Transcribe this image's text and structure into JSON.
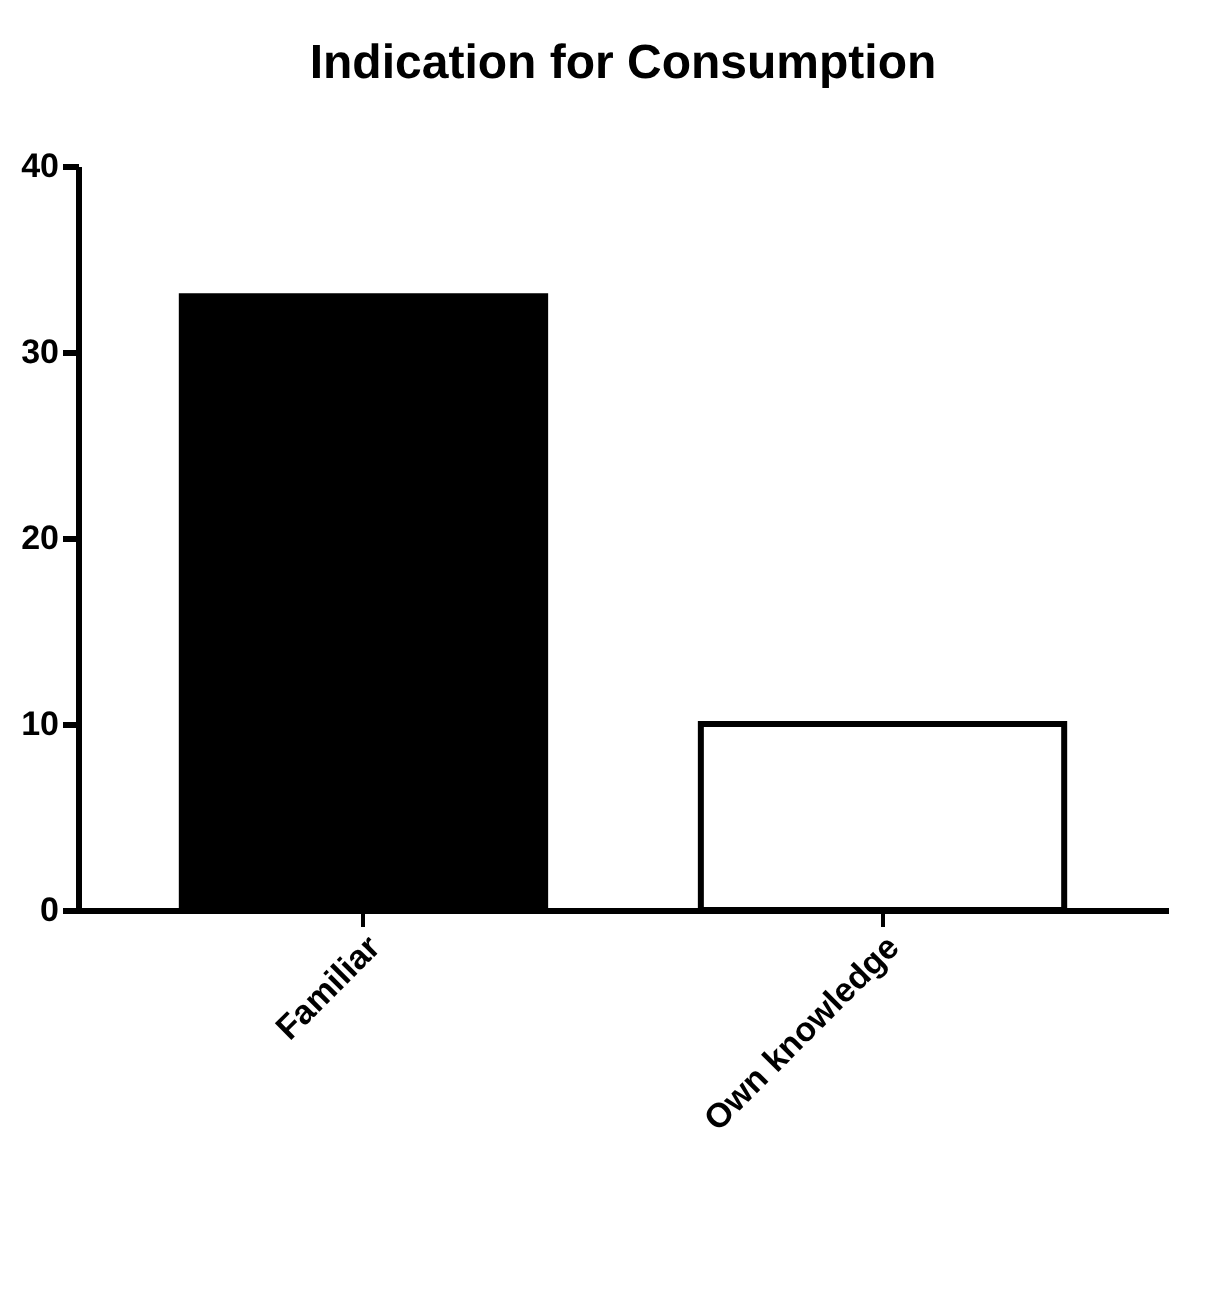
{
  "chart_data": {
    "type": "bar",
    "title": "Indication for Consumption",
    "categories": [
      "Familiar",
      "Own knowledge"
    ],
    "values": [
      33,
      10
    ],
    "colors": [
      "#000000",
      "#ffffff"
    ],
    "ylim": [
      0,
      40
    ],
    "yticks": [
      0,
      10,
      20,
      30,
      40
    ],
    "grid": false
  }
}
